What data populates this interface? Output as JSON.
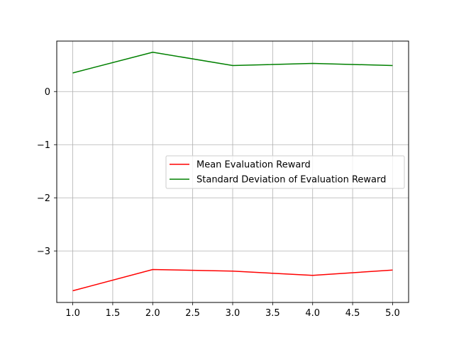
{
  "chart_data": {
    "type": "line",
    "title": "",
    "xlabel": "",
    "ylabel": "",
    "x": [
      1.0,
      2.0,
      3.0,
      4.0,
      5.0
    ],
    "series": [
      {
        "name": "Mean Evaluation Reward",
        "color": "#ff0000",
        "values": [
          -3.75,
          -3.35,
          -3.38,
          -3.46,
          -3.36
        ]
      },
      {
        "name": "Standard Deviation of Evaluation Reward",
        "color": "#008000",
        "values": [
          0.35,
          0.74,
          0.49,
          0.53,
          0.49
        ]
      }
    ],
    "xlim": [
      0.8,
      5.2
    ],
    "ylim": [
      -3.97,
      0.95
    ],
    "xticks": [
      1.0,
      1.5,
      2.0,
      2.5,
      3.0,
      3.5,
      4.0,
      4.5,
      5.0
    ],
    "xtick_labels": [
      "1.0",
      "1.5",
      "2.0",
      "2.5",
      "3.0",
      "3.5",
      "4.0",
      "4.5",
      "5.0"
    ],
    "yticks": [
      -3,
      -2,
      -1,
      0
    ],
    "ytick_labels": [
      "−3",
      "−2",
      "−1",
      "0"
    ],
    "grid": true,
    "legend_position": "center-right"
  }
}
